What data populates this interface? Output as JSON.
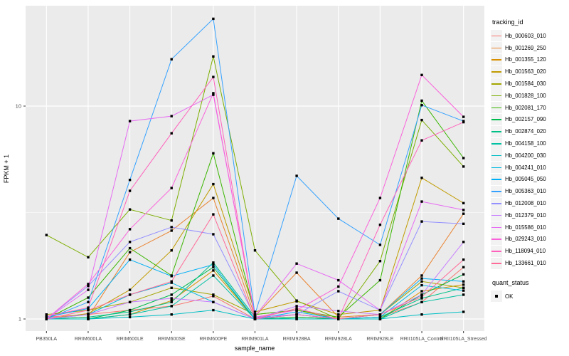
{
  "chart_data": {
    "type": "line",
    "title": "",
    "xlabel": "sample_name",
    "ylabel": "FPKM + 1",
    "y_scale": "log10",
    "y_ticks": [
      1,
      10
    ],
    "y_minor_gridlines": [
      3.162
    ],
    "ylim": [
      0.88,
      29.6
    ],
    "grid": true,
    "legend_position": "right",
    "panel_bg": "#EBEBEB",
    "grid_color": "#FFFFFF",
    "tick_color": "#333333",
    "axis_text_color": "#4D4D4D",
    "marker": "black-square",
    "categories": [
      "PB350LA",
      "RRIM600LA",
      "RRIM600LE",
      "RRIM600SE",
      "RRIM600PE",
      "RRIM901LA",
      "RRIM928BA",
      "RRIM928LA",
      "RRIM928LE",
      "RRII105LA_Control",
      "RRII105LA_Stressed"
    ],
    "legend_title": "tracking_id",
    "series": [
      {
        "name": "Hb_000603_010",
        "color": "#F8766D",
        "values": [
          1.02,
          1.05,
          1.1,
          1.15,
          1.28,
          1.0,
          1.05,
          1.0,
          1.02,
          1.2,
          1.75
        ]
      },
      {
        "name": "Hb_001269_250",
        "color": "#EA8331",
        "values": [
          1.0,
          1.02,
          2.06,
          2.6,
          3.7,
          1.03,
          1.65,
          1.02,
          1.05,
          1.6,
          3.12
        ]
      },
      {
        "name": "Hb_001355_120",
        "color": "#D89000",
        "values": [
          1.0,
          1.0,
          1.05,
          1.22,
          1.69,
          1.0,
          1.02,
          1.0,
          1.0,
          1.35,
          1.45
        ]
      },
      {
        "name": "Hb_001563_020",
        "color": "#C09B00",
        "values": [
          1.0,
          1.06,
          1.37,
          2.1,
          4.3,
          1.08,
          1.21,
          1.05,
          1.1,
          4.6,
          3.5
        ]
      },
      {
        "name": "Hb_001584_030",
        "color": "#A3A500",
        "values": [
          1.05,
          1.1,
          1.2,
          1.4,
          1.3,
          1.05,
          1.1,
          1.0,
          1.05,
          1.5,
          1.4
        ]
      },
      {
        "name": "Hb_001828_100",
        "color": "#7CAE00",
        "values": [
          2.48,
          1.95,
          3.27,
          2.9,
          17.1,
          2.1,
          1.22,
          1.0,
          1.87,
          8.6,
          5.2
        ]
      },
      {
        "name": "Hb_002081_170",
        "color": "#39B600",
        "values": [
          1.0,
          1.26,
          2.15,
          1.6,
          6.0,
          1.05,
          1.1,
          1.02,
          1.52,
          10.6,
          5.7
        ]
      },
      {
        "name": "Hb_002157_090",
        "color": "#00BB4E",
        "values": [
          1.0,
          1.0,
          1.1,
          1.3,
          1.75,
          1.0,
          1.02,
          1.0,
          1.0,
          1.3,
          1.62
        ]
      },
      {
        "name": "Hb_002874_020",
        "color": "#00C087",
        "values": [
          1.0,
          1.02,
          1.08,
          1.2,
          1.84,
          1.02,
          1.0,
          1.0,
          1.02,
          1.25,
          1.4
        ]
      },
      {
        "name": "Hb_004158_100",
        "color": "#00C1A3",
        "values": [
          1.0,
          1.0,
          1.05,
          1.15,
          1.6,
          1.0,
          1.0,
          1.0,
          1.0,
          1.2,
          1.3
        ]
      },
      {
        "name": "Hb_004200_030",
        "color": "#00BFC4",
        "values": [
          1.0,
          1.0,
          1.02,
          1.05,
          1.1,
          1.0,
          1.0,
          1.0,
          1.0,
          1.05,
          1.08
        ]
      },
      {
        "name": "Hb_004241_010",
        "color": "#00BAE0",
        "values": [
          1.0,
          1.05,
          1.3,
          1.48,
          1.2,
          1.0,
          1.05,
          1.0,
          1.02,
          1.44,
          1.36
        ]
      },
      {
        "name": "Hb_005045_050",
        "color": "#00B0F6",
        "values": [
          1.02,
          1.12,
          1.9,
          1.59,
          1.8,
          1.0,
          1.08,
          1.0,
          1.05,
          1.55,
          1.5
        ]
      },
      {
        "name": "Hb_005363_010",
        "color": "#35A2FF",
        "values": [
          1.0,
          1.2,
          4.5,
          16.6,
          25.7,
          1.05,
          4.7,
          2.96,
          2.23,
          10.1,
          8.5
        ]
      },
      {
        "name": "Hb_012008_010",
        "color": "#9590FF",
        "values": [
          1.0,
          1.43,
          2.3,
          2.7,
          2.5,
          1.02,
          1.05,
          1.35,
          1.1,
          2.87,
          2.8
        ]
      },
      {
        "name": "Hb_012379_010",
        "color": "#C77CFF",
        "values": [
          1.0,
          1.05,
          1.2,
          1.25,
          1.2,
          1.0,
          1.15,
          1.09,
          1.05,
          1.3,
          2.3
        ]
      },
      {
        "name": "Hb_015586_010",
        "color": "#E76BF3",
        "values": [
          1.0,
          1.37,
          8.5,
          8.97,
          11.3,
          1.03,
          1.82,
          1.52,
          1.1,
          3.56,
          3.25
        ]
      },
      {
        "name": "Hb_029243_010",
        "color": "#FA62DB",
        "values": [
          1.0,
          1.46,
          2.64,
          4.12,
          11.5,
          1.02,
          1.1,
          1.42,
          3.7,
          14.0,
          8.9
        ]
      },
      {
        "name": "Hb_118094_010",
        "color": "#FF62BC",
        "values": [
          1.03,
          1.13,
          4.0,
          7.45,
          13.7,
          1.0,
          1.05,
          1.0,
          2.77,
          6.9,
          8.4
        ]
      },
      {
        "name": "Hb_133661_010",
        "color": "#FF6A98",
        "values": [
          1.0,
          1.1,
          1.3,
          1.5,
          3.1,
          1.0,
          1.12,
          1.0,
          1.05,
          1.27,
          1.9
        ]
      }
    ],
    "quant_legend": {
      "title": "quant_status",
      "items": [
        {
          "label": "OK",
          "marker": "black-square"
        }
      ]
    }
  }
}
